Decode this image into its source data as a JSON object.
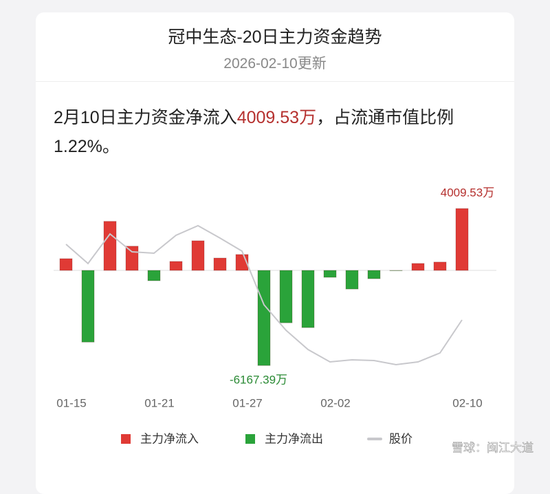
{
  "header": {
    "title": "冠中生态-20日主力资金趋势",
    "subtitle": "2026-02-10更新"
  },
  "summary": {
    "prefix": "2月10日主力资金净流入",
    "amount": "4009.53万",
    "suffix": "，占流通市值比例1.22%。"
  },
  "chart_data": {
    "type": "bar",
    "categories": [
      "01-15",
      null,
      null,
      null,
      "01-21",
      null,
      null,
      null,
      "01-27",
      null,
      null,
      null,
      "02-02",
      null,
      null,
      null,
      null,
      null,
      "02-10"
    ],
    "series": [
      {
        "name": "主力净流入",
        "color": "#e03a35"
      },
      {
        "name": "主力净流出",
        "color": "#2aa33a"
      },
      {
        "name": "股价",
        "color": "#c8c8cc",
        "axis": "y2",
        "values": [
          245,
          217,
          260,
          234,
          232,
          258,
          272,
          254,
          235,
          157,
          120,
          92,
          74,
          77,
          76,
          70,
          74,
          87,
          135
        ]
      }
    ],
    "values": [
      760,
      -4650,
      3180,
      1570,
      -670,
      580,
      1920,
      800,
      1030,
      -6167.39,
      -3400,
      -3710,
      -450,
      -1210,
      -540,
      -20,
      450,
      540,
      4009.53
    ],
    "value_labels": [
      null,
      null,
      null,
      null,
      null,
      null,
      null,
      null,
      null,
      "-6167.39万",
      null,
      null,
      null,
      null,
      null,
      null,
      null,
      null,
      "4009.53万"
    ],
    "ylim": [
      -7450,
      5040
    ],
    "y2lim": [
      40,
      320
    ]
  },
  "watermark": "雪球：闽江大道"
}
